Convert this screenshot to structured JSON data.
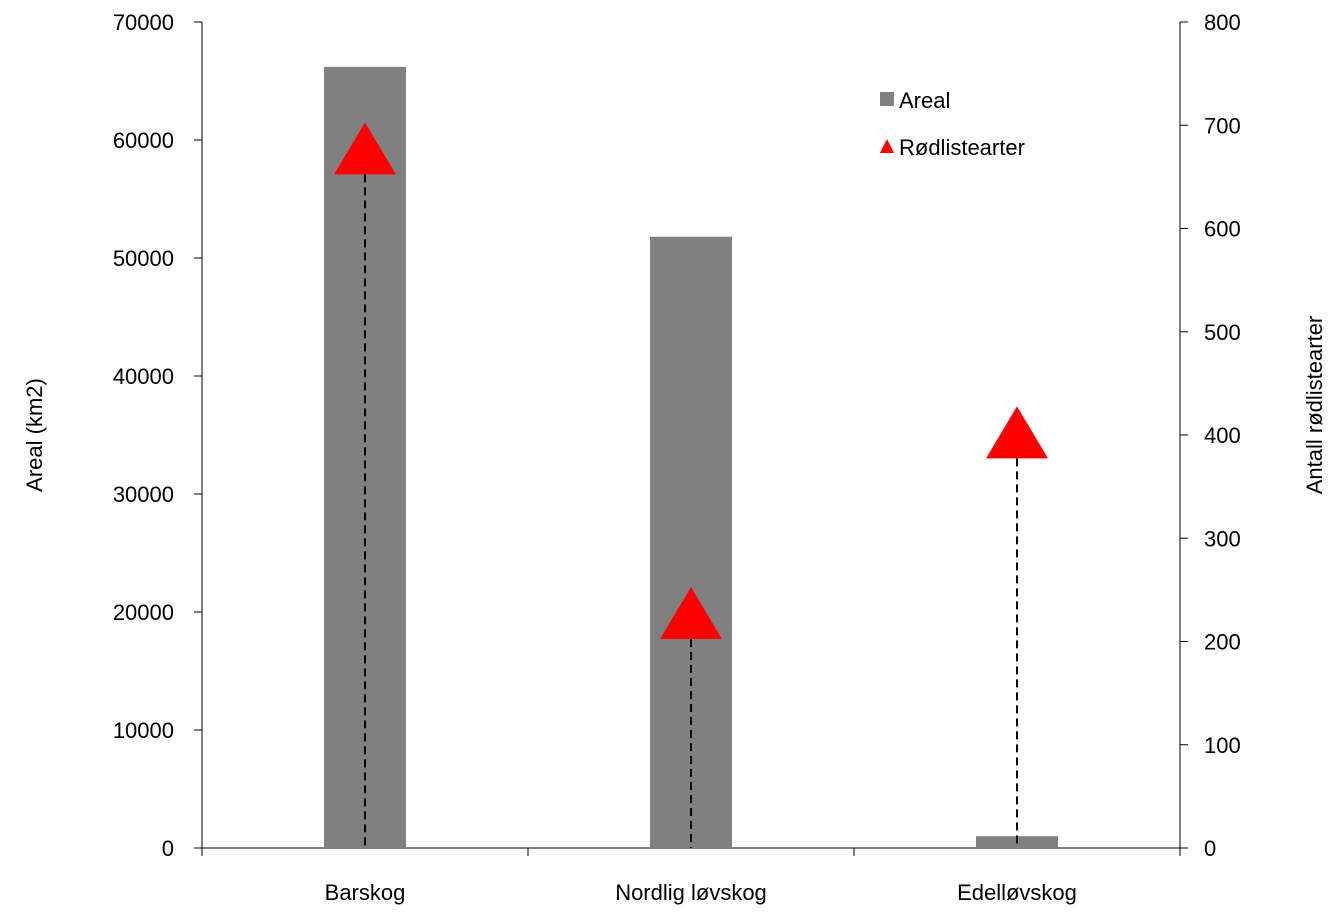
{
  "chart_data": {
    "type": "bar",
    "categories": [
      "Barskog",
      "Nordlig løvskog",
      "Edelløvskog"
    ],
    "series": [
      {
        "name": "Areal",
        "kind": "bar",
        "axis": "left",
        "color": "#808080",
        "values": [
          66200,
          51800,
          1000
        ]
      },
      {
        "name": "Rødlistearter",
        "kind": "triangle-marker",
        "axis": "right",
        "color": "#ff0000",
        "values": [
          670,
          220,
          395
        ]
      }
    ],
    "left_axis": {
      "label": "Areal (km2)",
      "ylim": [
        0,
        70000
      ],
      "ticks": [
        0,
        10000,
        20000,
        30000,
        40000,
        50000,
        60000,
        70000
      ]
    },
    "right_axis": {
      "label": "Antall rødlistearter",
      "ylim": [
        0,
        800
      ],
      "ticks": [
        0,
        100,
        200,
        300,
        400,
        500,
        600,
        700,
        800
      ]
    },
    "legend": {
      "placement": "top-right",
      "entries": [
        "Areal",
        "Rødlistearter"
      ]
    },
    "grid": false,
    "drop_lines": "dashed"
  }
}
